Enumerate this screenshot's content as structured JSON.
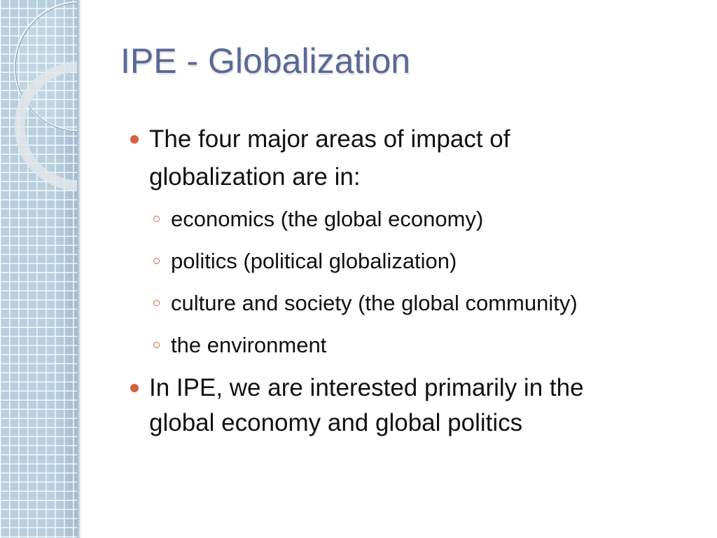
{
  "slide": {
    "title": "IPE - Globalization",
    "bullets": [
      {
        "lines": [
          "The four major areas of impact of",
          "globalization are in:"
        ],
        "sub": [
          "economics (the global economy)",
          "politics (political globalization)",
          "culture and society (the global community)",
          "the environment"
        ]
      },
      {
        "lines": [
          "In IPE, we are interested primarily  in the",
          "global economy and global politics"
        ]
      }
    ]
  },
  "colors": {
    "title": "#5a6898",
    "bullet": "#d6603d",
    "panel": "#b7cfdf"
  }
}
